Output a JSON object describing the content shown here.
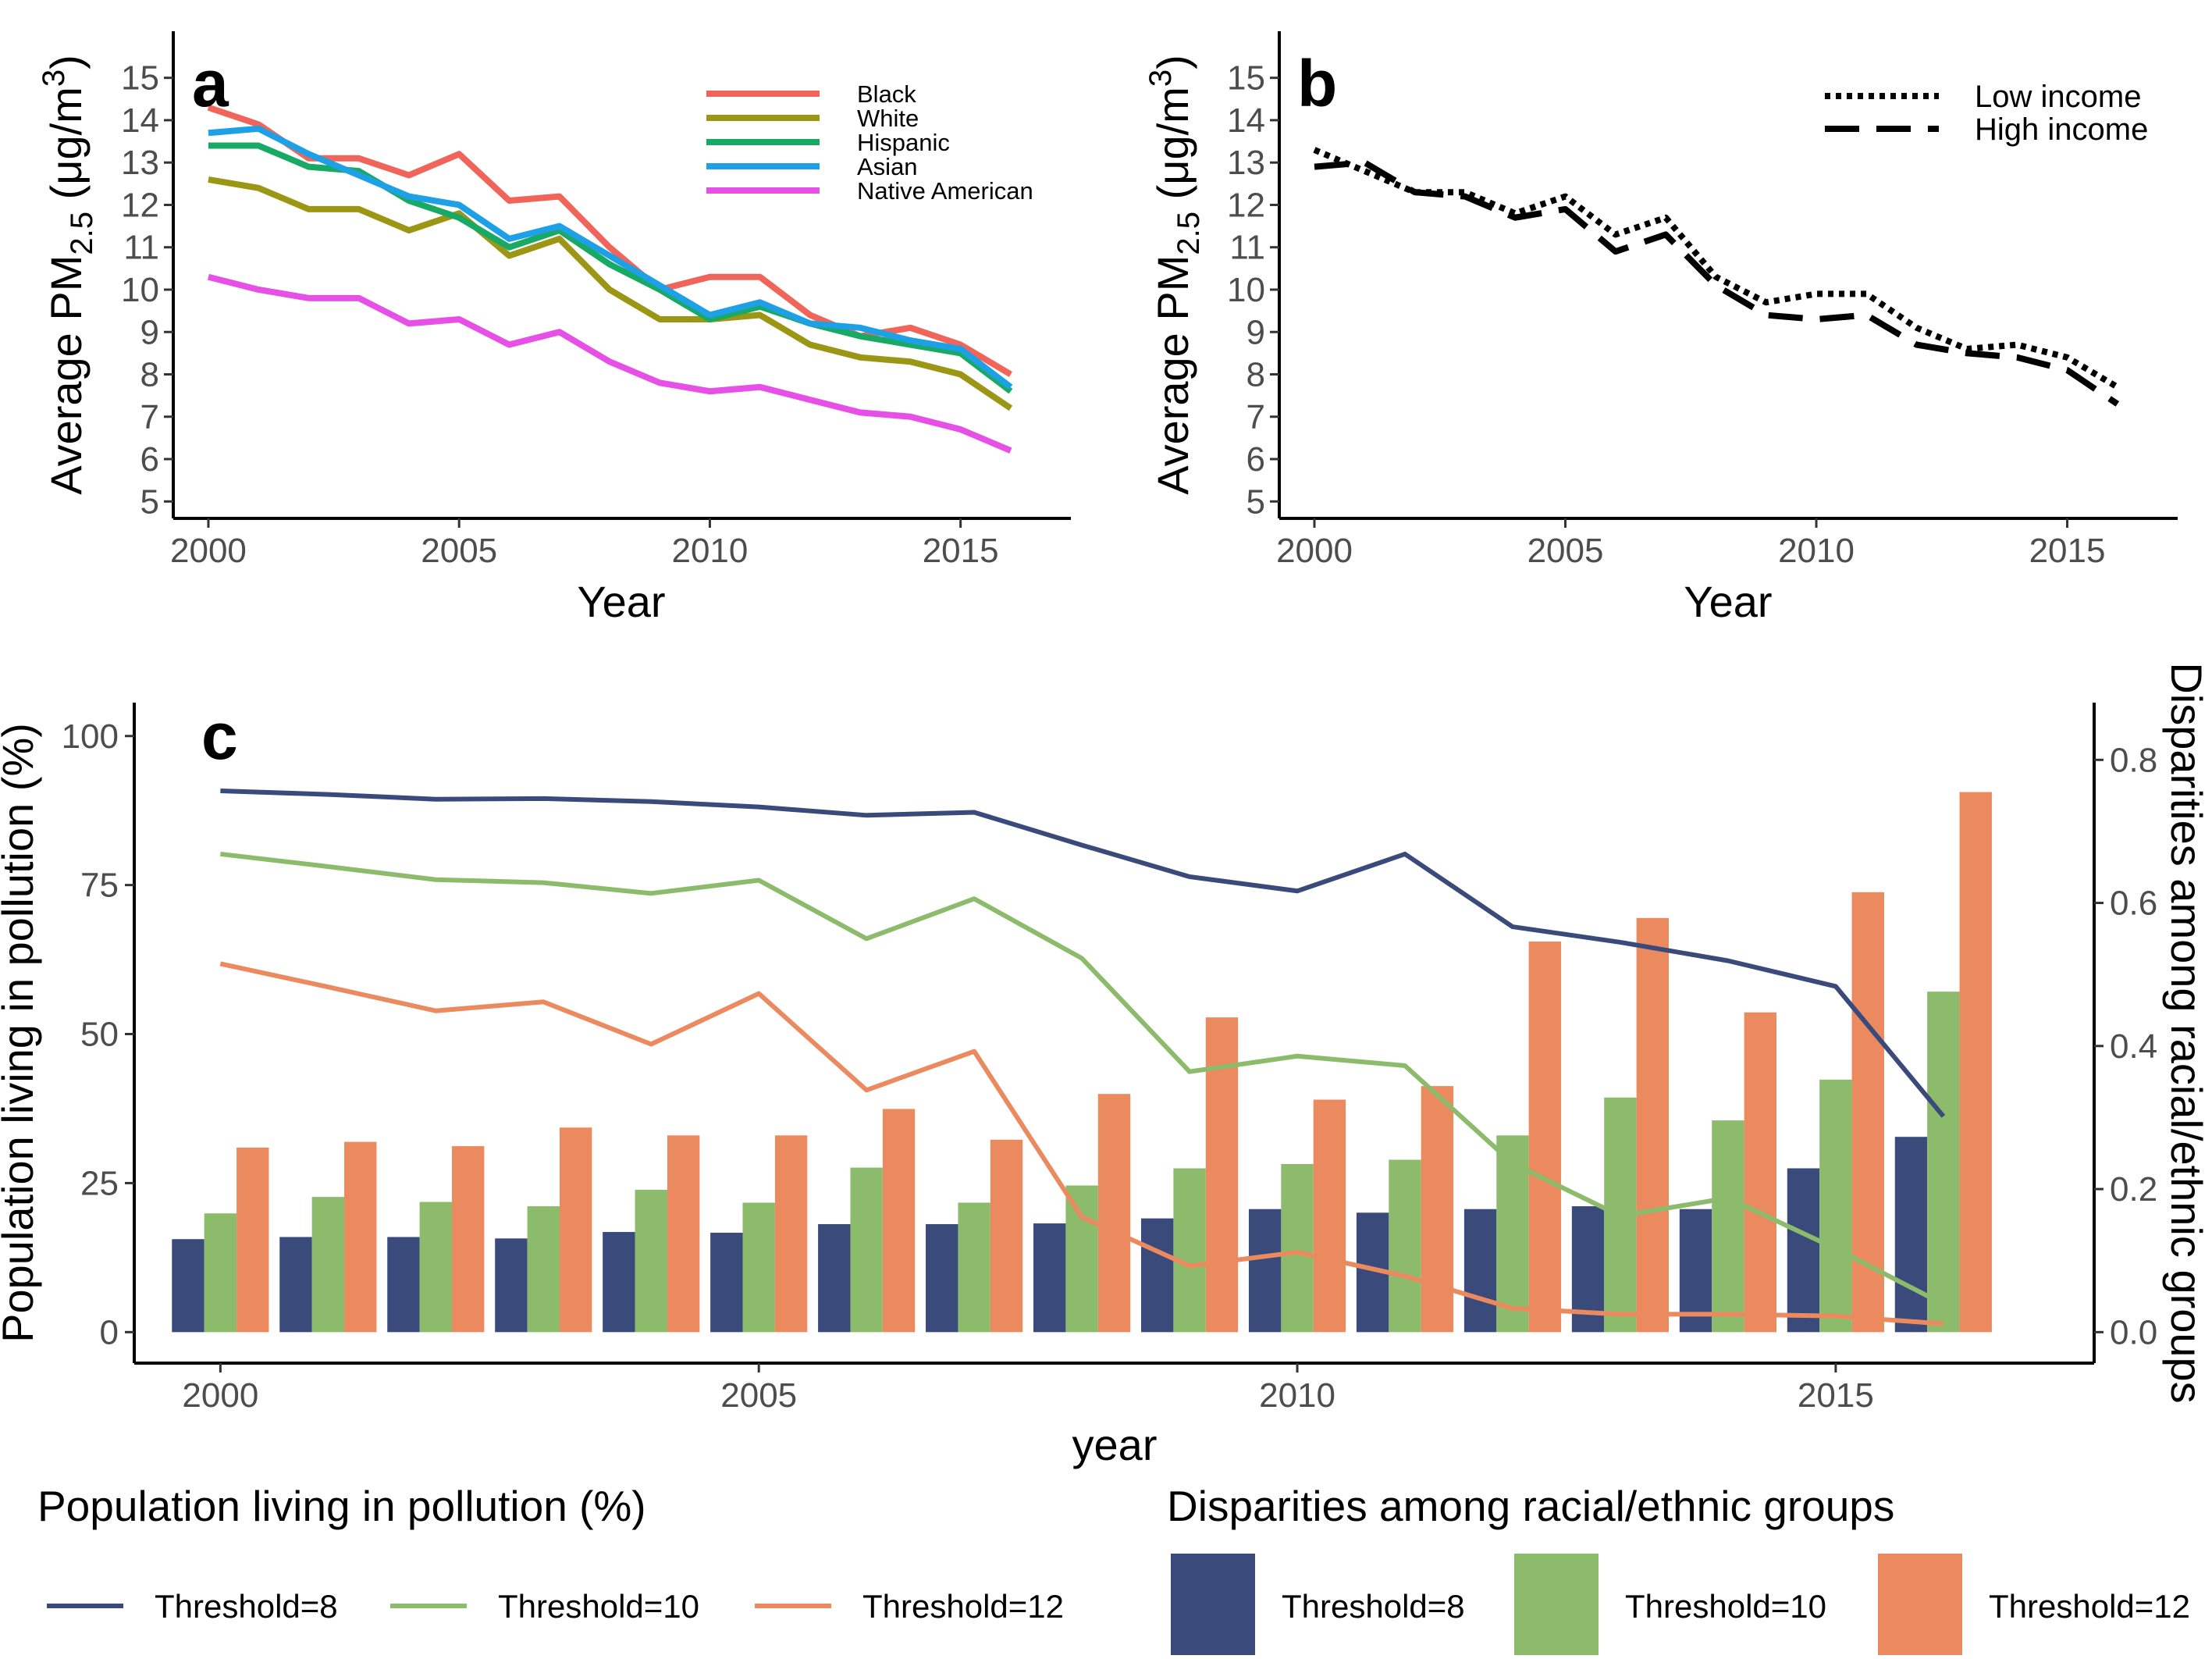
{
  "chart_data": [
    {
      "panel": "a",
      "type": "line",
      "label": "a",
      "xlabel": "Year",
      "ylabel": "Average PM",
      "ylabel_sub": "2.5",
      "ylabel_unit": " (μg/m",
      "ylabel_sup": "3",
      "ylabel_close": ")",
      "xlim": [
        1999.3,
        2017.2
      ],
      "ylim": [
        4.6,
        16.1
      ],
      "xticks": [
        2000,
        2005,
        2010,
        2015
      ],
      "yticks": [
        5,
        6,
        7,
        8,
        9,
        10,
        11,
        12,
        13,
        14,
        15
      ],
      "legend_position": "top-right",
      "x": [
        2000,
        2001,
        2002,
        2003,
        2004,
        2005,
        2006,
        2007,
        2008,
        2009,
        2010,
        2011,
        2012,
        2013,
        2014,
        2015,
        2016
      ],
      "series": [
        {
          "name": "Black",
          "color": "#F0645A",
          "values": [
            14.3,
            13.9,
            13.1,
            13.1,
            12.7,
            13.2,
            12.1,
            12.2,
            11.0,
            10.0,
            10.3,
            10.3,
            9.4,
            8.9,
            9.1,
            8.7,
            8.0
          ]
        },
        {
          "name": "White",
          "color": "#9B9614",
          "values": [
            12.6,
            12.4,
            11.9,
            11.9,
            11.4,
            11.8,
            10.8,
            11.2,
            10.0,
            9.3,
            9.3,
            9.4,
            8.7,
            8.4,
            8.3,
            8.0,
            7.2
          ]
        },
        {
          "name": "Hispanic",
          "color": "#18AA64",
          "values": [
            13.4,
            13.4,
            12.9,
            12.8,
            12.1,
            11.7,
            11.0,
            11.4,
            10.6,
            10.0,
            9.3,
            9.6,
            9.2,
            8.9,
            8.7,
            8.5,
            7.6
          ]
        },
        {
          "name": "Asian",
          "color": "#1EA0E6",
          "values": [
            13.7,
            13.8,
            13.2,
            12.7,
            12.2,
            12.0,
            11.2,
            11.5,
            10.8,
            10.1,
            9.4,
            9.7,
            9.2,
            9.1,
            8.8,
            8.6,
            7.7
          ]
        },
        {
          "name": "Native American",
          "color": "#E650E6",
          "values": [
            10.3,
            10.0,
            9.8,
            9.8,
            9.2,
            9.3,
            8.7,
            9.0,
            8.3,
            7.8,
            7.6,
            7.7,
            7.4,
            7.1,
            7.0,
            6.7,
            6.2
          ]
        }
      ]
    },
    {
      "panel": "b",
      "type": "line",
      "label": "b",
      "xlabel": "Year",
      "ylabel": "Average PM",
      "ylabel_sub": "2.5",
      "ylabel_unit": " (μg/m",
      "ylabel_sup": "3",
      "ylabel_close": ")",
      "xlim": [
        1999.3,
        2017.2
      ],
      "ylim": [
        4.6,
        16.1
      ],
      "xticks": [
        2000,
        2005,
        2010,
        2015
      ],
      "yticks": [
        5,
        6,
        7,
        8,
        9,
        10,
        11,
        12,
        13,
        14,
        15
      ],
      "legend_position": "top-right",
      "x": [
        2000,
        2001,
        2002,
        2003,
        2004,
        2005,
        2006,
        2007,
        2008,
        2009,
        2010,
        2011,
        2012,
        2013,
        2014,
        2015,
        2016
      ],
      "series": [
        {
          "name": "Low income",
          "dash": "dotted",
          "values": [
            13.3,
            12.8,
            12.3,
            12.3,
            11.8,
            12.2,
            11.3,
            11.7,
            10.3,
            9.7,
            9.9,
            9.9,
            9.1,
            8.6,
            8.7,
            8.4,
            7.7
          ]
        },
        {
          "name": "High income",
          "dash": "dashed",
          "values": [
            12.9,
            13.0,
            12.3,
            12.2,
            11.7,
            11.9,
            10.9,
            11.3,
            10.1,
            9.4,
            9.3,
            9.4,
            8.7,
            8.5,
            8.4,
            8.1,
            7.3
          ]
        }
      ]
    },
    {
      "panel": "c",
      "type": "bar",
      "label": "c",
      "xlabel": "year",
      "ylabel": "Population living in pollution (%)",
      "y2label": "Disparities among racial/ethnic groups",
      "xlim": [
        1999.2,
        2017.4
      ],
      "ylim": [
        -5.2,
        105.6
      ],
      "y2lim": [
        -0.0433,
        0.88
      ],
      "xticks": [
        2000,
        2005,
        2010,
        2015
      ],
      "yticks": [
        0,
        25,
        50,
        75,
        100
      ],
      "y2ticks": [
        0.0,
        0.2,
        0.4,
        0.6,
        0.8
      ],
      "y2tick_labels": [
        "0.0",
        "0.2",
        "0.4",
        "0.6",
        "0.8"
      ],
      "legend_position": "bottom",
      "years": [
        2000,
        2001,
        2002,
        2003,
        2004,
        2005,
        2006,
        2007,
        2008,
        2009,
        2010,
        2011,
        2012,
        2013,
        2014,
        2015,
        2016
      ],
      "line_legend_title": "Population living in pollution (%)",
      "bar_legend_title": "Disparities among racial/ethnic groups",
      "line_series": [
        {
          "name": "Threshold=8",
          "color": "#3A4A7B",
          "values": [
            90.8,
            90.2,
            89.4,
            89.5,
            89.0,
            88.1,
            86.7,
            87.2,
            81.7,
            76.4,
            74.0,
            80.2,
            68.0,
            65.4,
            62.3,
            58.0,
            36.2
          ]
        },
        {
          "name": "Threshold=10",
          "color": "#8CBB6C",
          "values": [
            80.2,
            78.1,
            75.9,
            75.4,
            73.6,
            75.8,
            66.0,
            72.7,
            62.7,
            43.7,
            46.3,
            44.7,
            28.3,
            19.5,
            22.5,
            14.0,
            4.7
          ]
        },
        {
          "name": "Threshold=12",
          "color": "#EC8A5F",
          "values": [
            61.8,
            57.9,
            53.9,
            55.4,
            48.3,
            56.8,
            40.6,
            47.1,
            19.3,
            11.1,
            13.4,
            9.4,
            4.0,
            3.0,
            3.0,
            2.7,
            1.4
          ]
        }
      ],
      "bar_series": [
        {
          "name": "Threshold=8",
          "color": "#3A4A7B",
          "values": [
            0.13,
            0.133,
            0.133,
            0.131,
            0.14,
            0.139,
            0.151,
            0.151,
            0.152,
            0.159,
            0.172,
            0.167,
            0.172,
            0.176,
            0.172,
            0.229,
            0.273
          ]
        },
        {
          "name": "Threshold=10",
          "color": "#8CBB6C",
          "values": [
            0.166,
            0.189,
            0.182,
            0.176,
            0.199,
            0.181,
            0.23,
            0.181,
            0.205,
            0.229,
            0.235,
            0.241,
            0.275,
            0.328,
            0.296,
            0.353,
            0.476
          ]
        },
        {
          "name": "Threshold=12",
          "color": "#EC8A5F",
          "values": [
            0.258,
            0.266,
            0.26,
            0.286,
            0.275,
            0.275,
            0.312,
            0.269,
            0.333,
            0.44,
            0.325,
            0.344,
            0.546,
            0.579,
            0.447,
            0.615,
            0.755
          ]
        }
      ]
    }
  ]
}
